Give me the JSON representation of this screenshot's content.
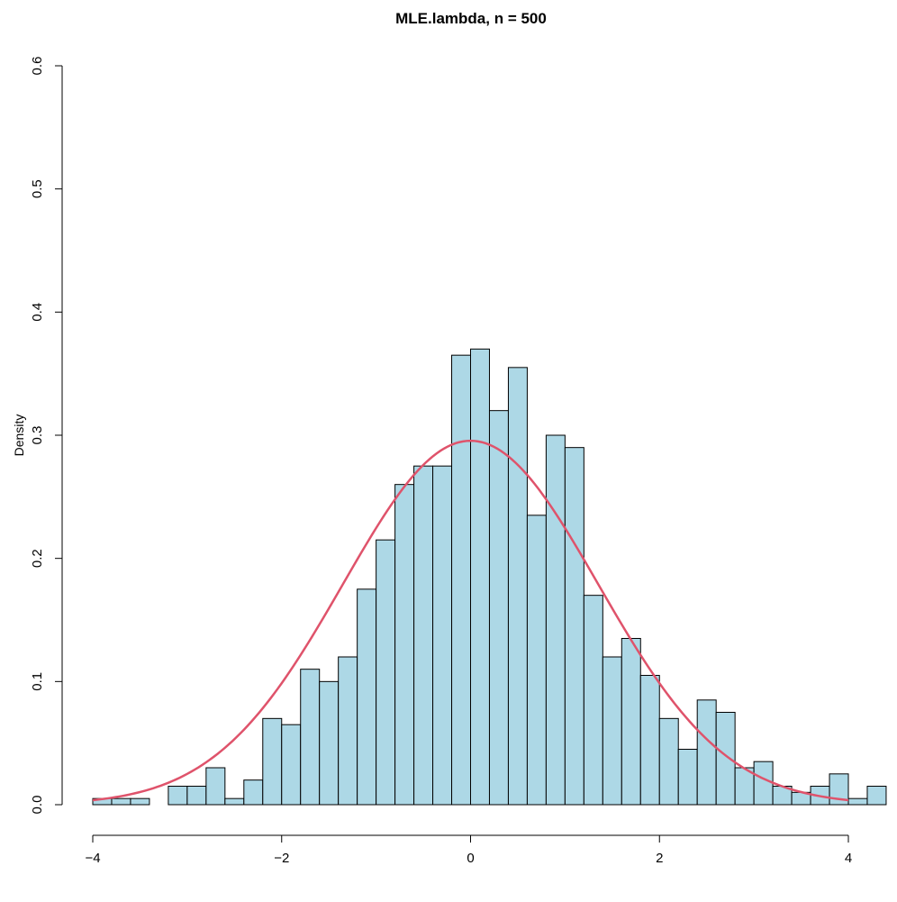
{
  "chart_data": {
    "type": "bar",
    "title": "MLE.lambda, n = 500",
    "xlabel": "",
    "ylabel": "Density",
    "xlim": [
      -4,
      4.3
    ],
    "ylim": [
      0,
      0.6
    ],
    "bin_width": 0.2,
    "bins_start": [
      -4.0,
      -3.8,
      -3.6,
      -3.4,
      -3.2,
      -3.0,
      -2.8,
      -2.6,
      -2.4,
      -2.2,
      -2.0,
      -1.8,
      -1.6,
      -1.4,
      -1.2,
      -1.0,
      -0.8,
      -0.6,
      -0.4,
      -0.2,
      0.0,
      0.2,
      0.4,
      0.6,
      0.8,
      1.0,
      1.2,
      1.4,
      1.6,
      1.8,
      2.0,
      2.2,
      2.4,
      2.6,
      2.8,
      3.0,
      3.2,
      3.4,
      3.6,
      3.8,
      4.0,
      4.2
    ],
    "values": [
      0.005,
      0.005,
      0.005,
      0.0,
      0.015,
      0.015,
      0.03,
      0.005,
      0.02,
      0.07,
      0.065,
      0.11,
      0.1,
      0.12,
      0.175,
      0.215,
      0.26,
      0.275,
      0.275,
      0.365,
      0.37,
      0.32,
      0.355,
      0.235,
      0.3,
      0.29,
      0.17,
      0.12,
      0.135,
      0.105,
      0.07,
      0.045,
      0.085,
      0.075,
      0.03,
      0.035,
      0.015,
      0.01,
      0.015,
      0.025,
      0.005,
      0.015
    ],
    "x_ticks": [
      -4,
      -2,
      0,
      2,
      4
    ],
    "x_tick_labels": [
      "−4",
      "−2",
      "0",
      "2",
      "4"
    ],
    "y_ticks": [
      0.0,
      0.1,
      0.2,
      0.3,
      0.4,
      0.5,
      0.6
    ],
    "y_tick_labels": [
      "0.0",
      "0.1",
      "0.2",
      "0.3",
      "0.4",
      "0.5",
      "0.6"
    ],
    "overlay_curve": {
      "type": "normal_density",
      "mean": 0,
      "sd": 1.35,
      "x_range": [
        -4,
        4
      ],
      "color": "#df536b"
    },
    "bar_fill": "#add8e6",
    "bar_stroke": "#000000",
    "grid": false
  }
}
